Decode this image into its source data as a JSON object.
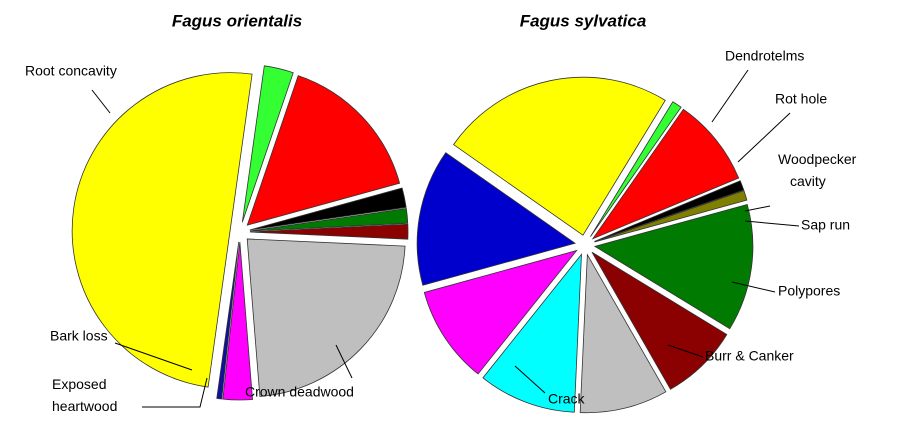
{
  "chart_data": [
    {
      "type": "pie",
      "title": "Fagus orientalis",
      "values": [
        3,
        15.5,
        2,
        1.5,
        1.5,
        23,
        3,
        0.5,
        50
      ],
      "colors": [
        "#33ff33",
        "#ff0000",
        "#000000",
        "#007a00",
        "#8b0000",
        "#bfbfbf",
        "#ff00ff",
        "#1010a0",
        "#ffff00"
      ],
      "labels": [
        null,
        null,
        null,
        null,
        null,
        "Crown deadwood",
        "Exposed heartwood",
        "Bark loss",
        "Root concavity"
      ]
    },
    {
      "type": "pie",
      "title": "Fagus sylvatica",
      "values": [
        24,
        1,
        9,
        1,
        1,
        13,
        8,
        9,
        10,
        10,
        14
      ],
      "colors": [
        "#ffff00",
        "#33ff33",
        "#ff0000",
        "#000000",
        "#808000",
        "#007a00",
        "#8b0000",
        "#bfbfbf",
        "#00ffff",
        "#ff00ff",
        "#0000cc"
      ],
      "labels": [
        null,
        "Dendrotelms",
        "Rot hole",
        "Woodpecker cavity",
        "Sap run",
        "Polypores",
        "Burr & Canker",
        null,
        "Crack",
        null,
        null
      ]
    }
  ]
}
